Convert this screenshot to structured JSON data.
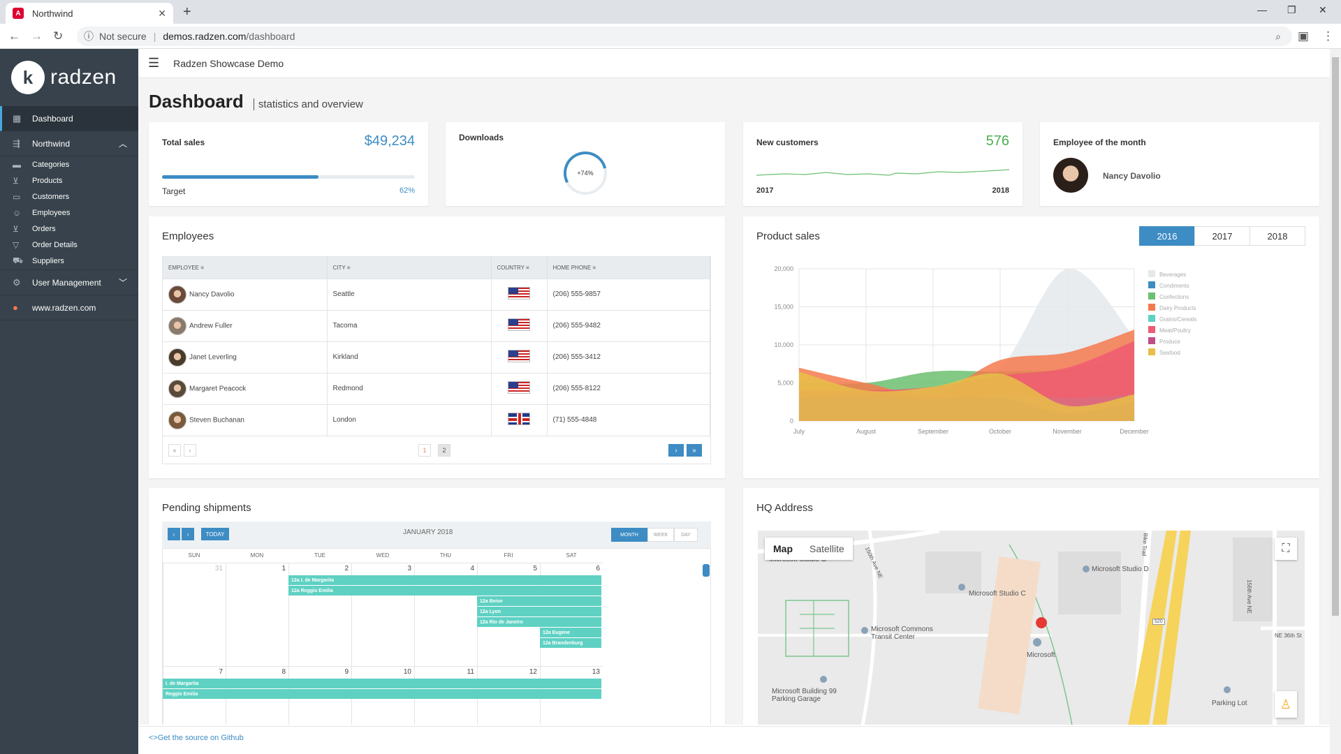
{
  "browser": {
    "tab_title": "Northwind",
    "tab_icon": "A",
    "security": "Not secure",
    "url_host": "demos.radzen.com",
    "url_path": "/dashboard"
  },
  "sidebar": {
    "brand_mark": "k",
    "brand": "radzen",
    "items": [
      {
        "label": "Dashboard",
        "icon": "dashboard-icon"
      },
      {
        "label": "Northwind",
        "icon": "store-icon"
      }
    ],
    "sub_items": [
      {
        "label": "Categories",
        "icon": "folder-icon"
      },
      {
        "label": "Products",
        "icon": "cart-icon"
      },
      {
        "label": "Customers",
        "icon": "card-icon"
      },
      {
        "label": "Employees",
        "icon": "face-icon"
      },
      {
        "label": "Orders",
        "icon": "cart-icon"
      },
      {
        "label": "Order Details",
        "icon": "filter-icon"
      },
      {
        "label": "Suppliers",
        "icon": "truck-icon"
      }
    ],
    "user_mgmt": "User Management",
    "site": "www.radzen.com"
  },
  "topbar": {
    "title": "Radzen Showcase Demo"
  },
  "page": {
    "title": "Dashboard",
    "subtitle": "statistics and overview"
  },
  "stats": {
    "total_sales": {
      "label": "Total sales",
      "value": "$49,234",
      "target_label": "Target",
      "percent_label": "62%",
      "progress": 0.62
    },
    "downloads": {
      "label": "Downloads",
      "gauge_label": "+74%",
      "gauge_value": 0.74
    },
    "new_customers": {
      "label": "New customers",
      "value": "576",
      "from": "2017",
      "to": "2018"
    },
    "employee_month": {
      "label": "Employee of the month",
      "name": "Nancy Davolio"
    }
  },
  "employees": {
    "title": "Employees",
    "columns": [
      "EMPLOYEE",
      "CITY",
      "COUNTRY",
      "HOME PHONE"
    ],
    "rows": [
      {
        "name": "Nancy Davolio",
        "city": "Seattle",
        "country": "us",
        "phone": "(206) 555-9857"
      },
      {
        "name": "Andrew Fuller",
        "city": "Tacoma",
        "country": "us",
        "phone": "(206) 555-9482"
      },
      {
        "name": "Janet Leverling",
        "city": "Kirkland",
        "country": "us",
        "phone": "(206) 555-3412"
      },
      {
        "name": "Margaret Peacock",
        "city": "Redmond",
        "country": "us",
        "phone": "(206) 555-8122"
      },
      {
        "name": "Steven Buchanan",
        "city": "London",
        "country": "uk",
        "phone": "(71) 555-4848"
      }
    ],
    "pages": [
      "1",
      "2"
    ]
  },
  "product_sales": {
    "title": "Product sales",
    "years": [
      "2016",
      "2017",
      "2018"
    ],
    "selected_year": "2016"
  },
  "chart_data": {
    "type": "area",
    "x": [
      "July",
      "August",
      "September",
      "October",
      "November",
      "December"
    ],
    "ylim": [
      0,
      20000
    ],
    "yticks": [
      "0",
      "5,000",
      "10,000",
      "15,000",
      "20,000"
    ],
    "legend": "right",
    "grid": true,
    "series": [
      {
        "name": "Beverages",
        "color": "#e4e9ec",
        "values": [
          4000,
          3500,
          4500,
          7000,
          20000,
          11000
        ]
      },
      {
        "name": "Condiments",
        "color": "#3d8cc4",
        "values": [
          2500,
          2000,
          2200,
          3000,
          2800,
          3200
        ]
      },
      {
        "name": "Confections",
        "color": "#6cc071",
        "values": [
          5000,
          5000,
          6500,
          6500,
          6800,
          8500
        ]
      },
      {
        "name": "Dairy Products",
        "color": "#f47a4e",
        "values": [
          7000,
          5000,
          3500,
          8000,
          9000,
          12000
        ]
      },
      {
        "name": "Grains/Cereals",
        "color": "#5fd1c3",
        "values": [
          3000,
          2500,
          2500,
          3500,
          3000,
          3500
        ]
      },
      {
        "name": "Meat/Poultry",
        "color": "#f05a73",
        "values": [
          4000,
          4000,
          4500,
          6000,
          7000,
          10500
        ]
      },
      {
        "name": "Produce",
        "color": "#c04d8a",
        "values": [
          3000,
          3500,
          3000,
          3000,
          1000,
          2500
        ]
      },
      {
        "name": "Seafood",
        "color": "#e8bf48",
        "values": [
          6500,
          4000,
          4500,
          6200,
          2000,
          3500
        ]
      }
    ]
  },
  "shipments": {
    "title": "Pending shipments",
    "month_label": "JANUARY 2018",
    "today": "TODAY",
    "views": [
      "MONTH",
      "WEEK",
      "DAY"
    ],
    "days": [
      "SUN",
      "MON",
      "TUE",
      "WED",
      "THU",
      "FRI",
      "SAT"
    ],
    "week1": [
      "31",
      "1",
      "2",
      "3",
      "4",
      "5",
      "6"
    ],
    "week2": [
      "7",
      "8",
      "9",
      "10",
      "11",
      "12",
      "13"
    ],
    "events_week1": [
      "12a I. de Margarita",
      "12a Reggio Emilia",
      "12a Boise",
      "12a Lyon",
      "12a Rio de Janeiro",
      "12a Eugene",
      "12a Brandenburg"
    ],
    "events_week2": [
      "I. de Margarita",
      "Reggio Emilia"
    ]
  },
  "hq": {
    "title": "HQ Address",
    "map_tabs": [
      "Map",
      "Satellite"
    ],
    "labels": [
      "Microsoft Studio C",
      "Microsoft Studio D",
      "Microsoft Commons Transit Center",
      "Microsoft",
      "Microsoft Building 99 Parking Garage",
      "Parking Lot",
      "Microsoft Studio G",
      "156th Ave NE",
      "NE 36th St",
      "150th Ave NE",
      "Bike Trail",
      "520"
    ]
  },
  "footer": {
    "link": "<>Get the source on Github"
  }
}
